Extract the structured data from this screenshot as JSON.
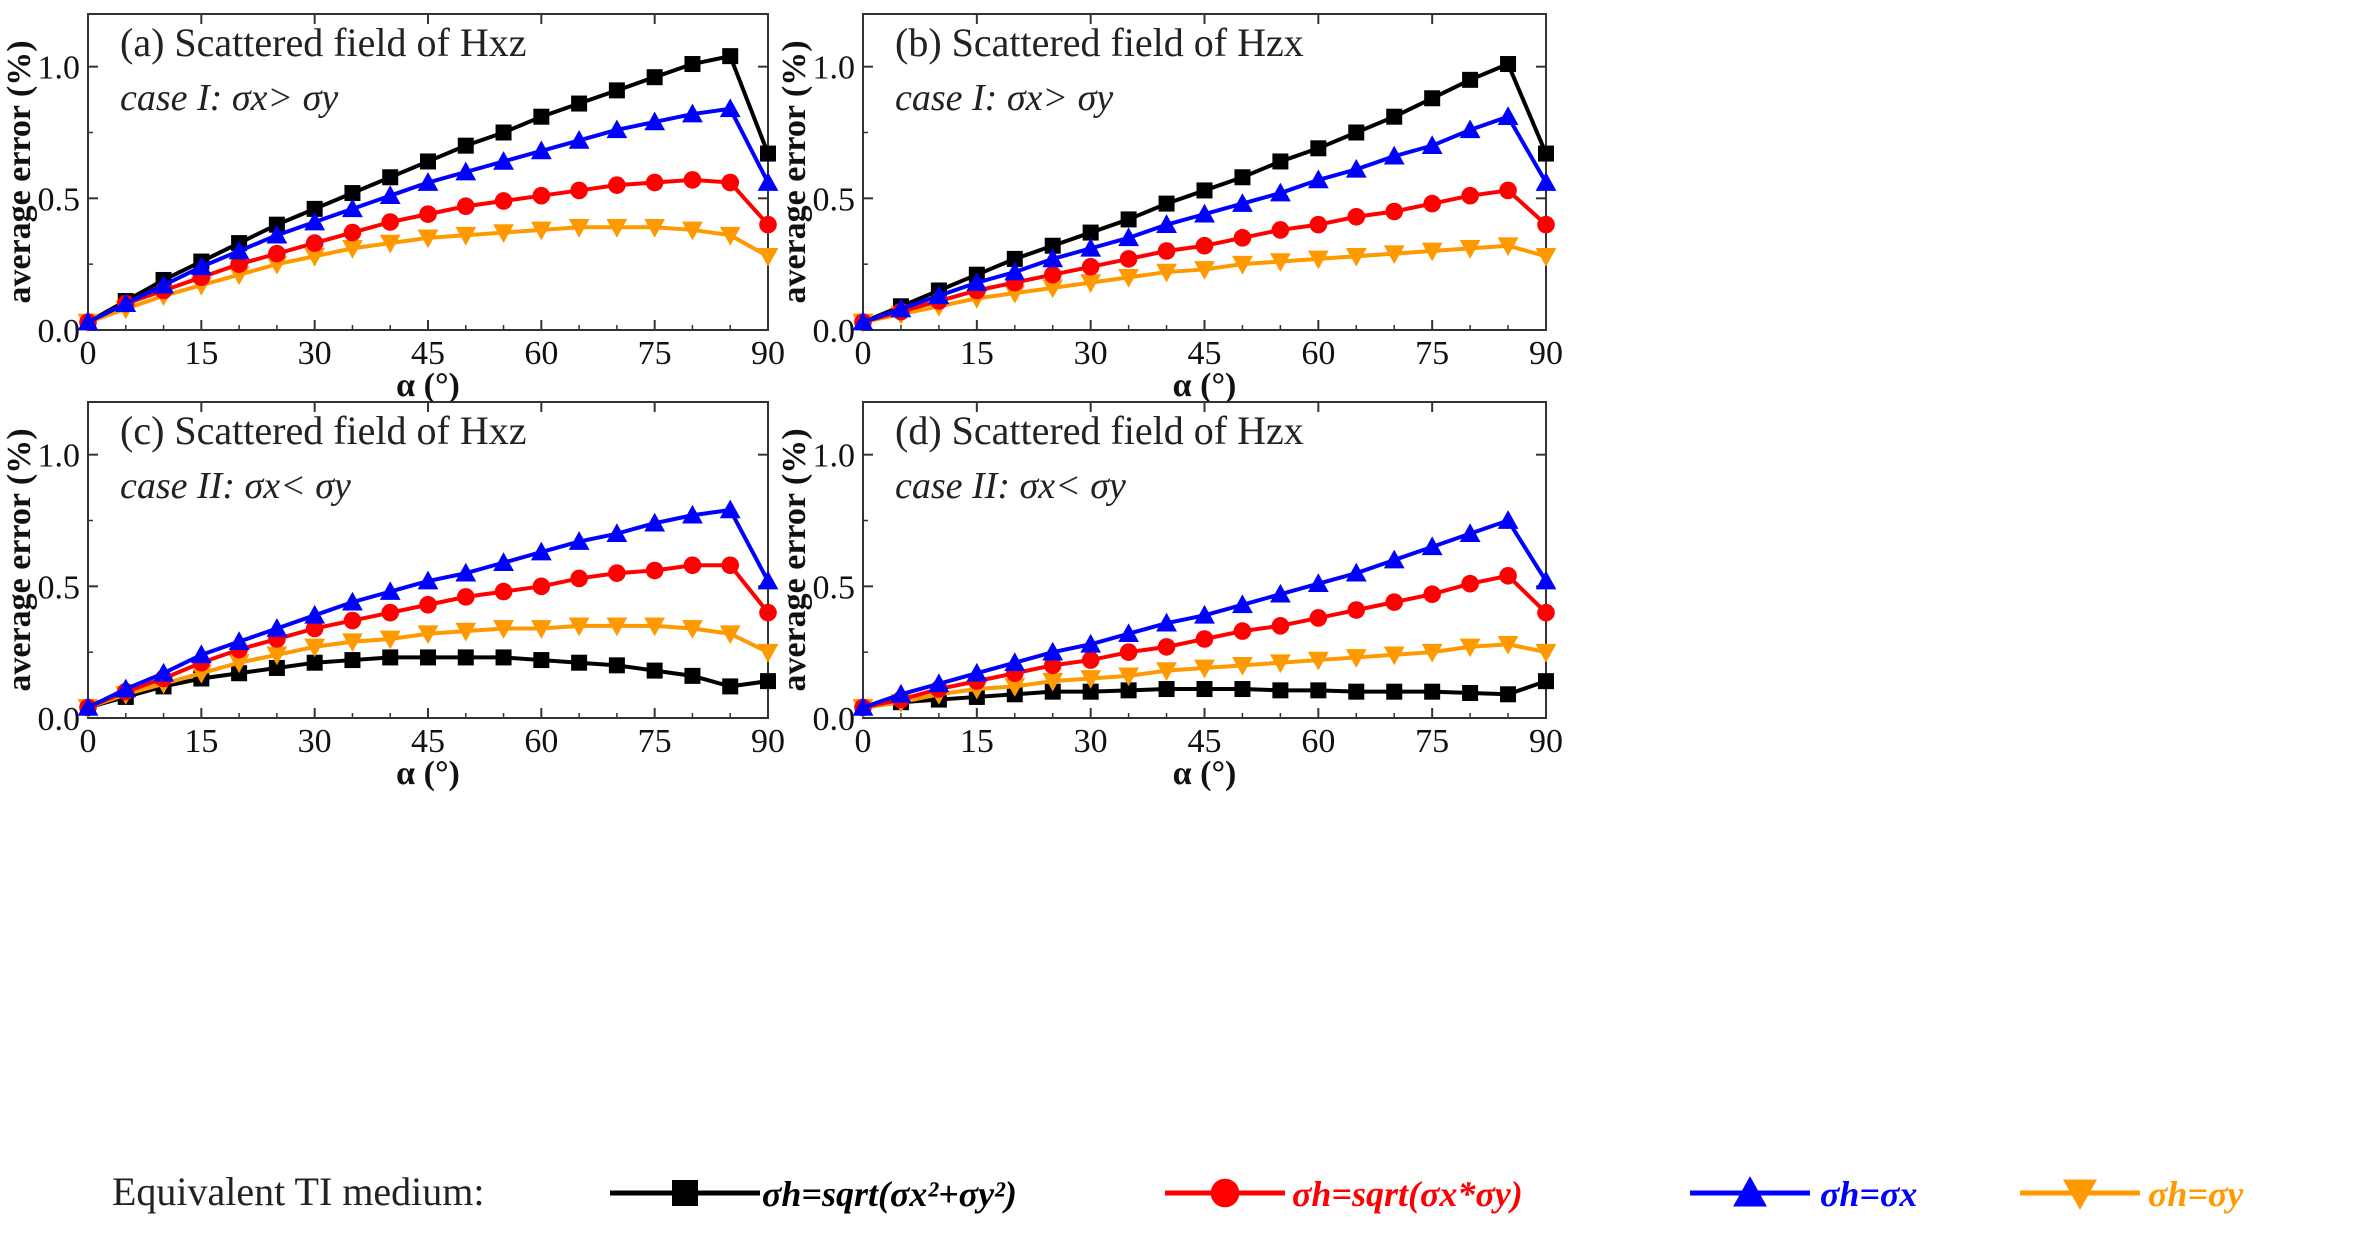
{
  "chart_data": [
    {
      "type": "line",
      "title": "(a) Scattered field of Hxz",
      "subtitle": "case I: σx> σy",
      "xlabel": "α (°)",
      "ylabel": "average error (%)",
      "xlim": [
        0,
        90
      ],
      "ylim": [
        0,
        1.2
      ],
      "xticks": [
        "0",
        "15",
        "30",
        "45",
        "60",
        "75",
        "90"
      ],
      "yticks": [
        "0.0",
        "0.5",
        "1.0"
      ],
      "x": [
        0,
        5,
        10,
        15,
        20,
        25,
        30,
        35,
        40,
        45,
        50,
        55,
        60,
        65,
        70,
        75,
        80,
        85,
        90
      ],
      "series": [
        {
          "name": "σh=sqrt(σx²+σy²)",
          "values": [
            0.03,
            0.11,
            0.19,
            0.26,
            0.33,
            0.4,
            0.46,
            0.52,
            0.58,
            0.64,
            0.7,
            0.75,
            0.81,
            0.86,
            0.91,
            0.96,
            1.01,
            1.04,
            0.67
          ]
        },
        {
          "name": "σh=sqrt(σx*σy)",
          "values": [
            0.03,
            0.1,
            0.15,
            0.2,
            0.25,
            0.29,
            0.33,
            0.37,
            0.41,
            0.44,
            0.47,
            0.49,
            0.51,
            0.53,
            0.55,
            0.56,
            0.57,
            0.56,
            0.4
          ]
        },
        {
          "name": "σh=σx",
          "values": [
            0.03,
            0.1,
            0.17,
            0.24,
            0.3,
            0.36,
            0.41,
            0.46,
            0.51,
            0.56,
            0.6,
            0.64,
            0.68,
            0.72,
            0.76,
            0.79,
            0.82,
            0.84,
            0.56
          ]
        },
        {
          "name": "σh=σy",
          "values": [
            0.03,
            0.08,
            0.13,
            0.17,
            0.21,
            0.25,
            0.28,
            0.31,
            0.33,
            0.35,
            0.36,
            0.37,
            0.38,
            0.39,
            0.39,
            0.39,
            0.38,
            0.36,
            0.28
          ]
        }
      ]
    },
    {
      "type": "line",
      "title": "(b) Scattered field of Hzx",
      "subtitle": "case I: σx> σy",
      "xlabel": "α (°)",
      "ylabel": "average error (%)",
      "xlim": [
        0,
        90
      ],
      "ylim": [
        0,
        1.2
      ],
      "xticks": [
        "0",
        "15",
        "30",
        "45",
        "60",
        "75",
        "90"
      ],
      "yticks": [
        "0.0",
        "0.5",
        "1.0"
      ],
      "x": [
        0,
        5,
        10,
        15,
        20,
        25,
        30,
        35,
        40,
        45,
        50,
        55,
        60,
        65,
        70,
        75,
        80,
        85,
        90
      ],
      "series": [
        {
          "name": "σh=sqrt(σx²+σy²)",
          "values": [
            0.03,
            0.09,
            0.15,
            0.21,
            0.27,
            0.32,
            0.37,
            0.42,
            0.48,
            0.53,
            0.58,
            0.64,
            0.69,
            0.75,
            0.81,
            0.88,
            0.95,
            1.01,
            0.67
          ]
        },
        {
          "name": "σh=sqrt(σx*σy)",
          "values": [
            0.03,
            0.07,
            0.11,
            0.15,
            0.18,
            0.21,
            0.24,
            0.27,
            0.3,
            0.32,
            0.35,
            0.38,
            0.4,
            0.43,
            0.45,
            0.48,
            0.51,
            0.53,
            0.4
          ]
        },
        {
          "name": "σh=σx",
          "values": [
            0.03,
            0.08,
            0.13,
            0.18,
            0.22,
            0.27,
            0.31,
            0.35,
            0.4,
            0.44,
            0.48,
            0.52,
            0.57,
            0.61,
            0.66,
            0.7,
            0.76,
            0.81,
            0.56
          ]
        },
        {
          "name": "σh=σy",
          "values": [
            0.03,
            0.06,
            0.09,
            0.12,
            0.14,
            0.16,
            0.18,
            0.2,
            0.22,
            0.23,
            0.25,
            0.26,
            0.27,
            0.28,
            0.29,
            0.3,
            0.31,
            0.32,
            0.28
          ]
        }
      ]
    },
    {
      "type": "line",
      "title": "(c) Scattered field of Hxz",
      "subtitle": "case II: σx< σy",
      "xlabel": "α (°)",
      "ylabel": "average error (%)",
      "xlim": [
        0,
        90
      ],
      "ylim": [
        0,
        1.2
      ],
      "xticks": [
        "0",
        "15",
        "30",
        "45",
        "60",
        "75",
        "90"
      ],
      "yticks": [
        "0.0",
        "0.5",
        "1.0"
      ],
      "x": [
        0,
        5,
        10,
        15,
        20,
        25,
        30,
        35,
        40,
        45,
        50,
        55,
        60,
        65,
        70,
        75,
        80,
        85,
        90
      ],
      "series": [
        {
          "name": "σh=sqrt(σx²+σy²)",
          "values": [
            0.04,
            0.08,
            0.12,
            0.15,
            0.17,
            0.19,
            0.21,
            0.22,
            0.23,
            0.23,
            0.23,
            0.23,
            0.22,
            0.21,
            0.2,
            0.18,
            0.16,
            0.12,
            0.14
          ]
        },
        {
          "name": "σh=sqrt(σx*σy)",
          "values": [
            0.04,
            0.1,
            0.15,
            0.21,
            0.26,
            0.3,
            0.34,
            0.37,
            0.4,
            0.43,
            0.46,
            0.48,
            0.5,
            0.53,
            0.55,
            0.56,
            0.58,
            0.58,
            0.4
          ]
        },
        {
          "name": "σh=σx",
          "values": [
            0.04,
            0.11,
            0.17,
            0.24,
            0.29,
            0.34,
            0.39,
            0.44,
            0.48,
            0.52,
            0.55,
            0.59,
            0.63,
            0.67,
            0.7,
            0.74,
            0.77,
            0.79,
            0.52
          ]
        },
        {
          "name": "σh=σy",
          "values": [
            0.04,
            0.09,
            0.13,
            0.17,
            0.21,
            0.24,
            0.27,
            0.29,
            0.3,
            0.32,
            0.33,
            0.34,
            0.34,
            0.35,
            0.35,
            0.35,
            0.34,
            0.32,
            0.25
          ]
        }
      ]
    },
    {
      "type": "line",
      "title": "(d) Scattered field of Hzx",
      "subtitle": "case II: σx< σy",
      "xlabel": "α (°)",
      "ylabel": "average error (%)",
      "xlim": [
        0,
        90
      ],
      "ylim": [
        0,
        1.2
      ],
      "xticks": [
        "0",
        "15",
        "30",
        "45",
        "60",
        "75",
        "90"
      ],
      "yticks": [
        "0.0",
        "0.5",
        "1.0"
      ],
      "x": [
        0,
        5,
        10,
        15,
        20,
        25,
        30,
        35,
        40,
        45,
        50,
        55,
        60,
        65,
        70,
        75,
        80,
        85,
        90
      ],
      "series": [
        {
          "name": "σh=sqrt(σx²+σy²)",
          "values": [
            0.04,
            0.06,
            0.07,
            0.08,
            0.09,
            0.1,
            0.1,
            0.105,
            0.11,
            0.11,
            0.11,
            0.105,
            0.105,
            0.1,
            0.1,
            0.1,
            0.095,
            0.09,
            0.14
          ]
        },
        {
          "name": "σh=sqrt(σx*σy)",
          "values": [
            0.04,
            0.07,
            0.11,
            0.14,
            0.17,
            0.2,
            0.22,
            0.25,
            0.27,
            0.3,
            0.33,
            0.35,
            0.38,
            0.41,
            0.44,
            0.47,
            0.51,
            0.54,
            0.4
          ]
        },
        {
          "name": "σh=σx",
          "values": [
            0.04,
            0.09,
            0.13,
            0.17,
            0.21,
            0.25,
            0.28,
            0.32,
            0.36,
            0.39,
            0.43,
            0.47,
            0.51,
            0.55,
            0.6,
            0.65,
            0.7,
            0.75,
            0.52
          ]
        },
        {
          "name": "σh=σy",
          "values": [
            0.04,
            0.06,
            0.09,
            0.11,
            0.12,
            0.14,
            0.15,
            0.16,
            0.18,
            0.19,
            0.2,
            0.21,
            0.22,
            0.23,
            0.24,
            0.25,
            0.27,
            0.28,
            0.25
          ]
        }
      ]
    }
  ],
  "legend": {
    "label": "Equivalent TI medium:",
    "items": [
      {
        "text": "σh=sqrt(σx²+σy²)",
        "color": "#000000",
        "marker": "square"
      },
      {
        "text": "σh=sqrt(σx*σy)",
        "color": "#ff0000",
        "marker": "circle"
      },
      {
        "text": "σh=σx",
        "color": "#0000ff",
        "marker": "triangle-up"
      },
      {
        "text": "σh=σy",
        "color": "#ff9900",
        "marker": "triangle-down"
      }
    ]
  }
}
